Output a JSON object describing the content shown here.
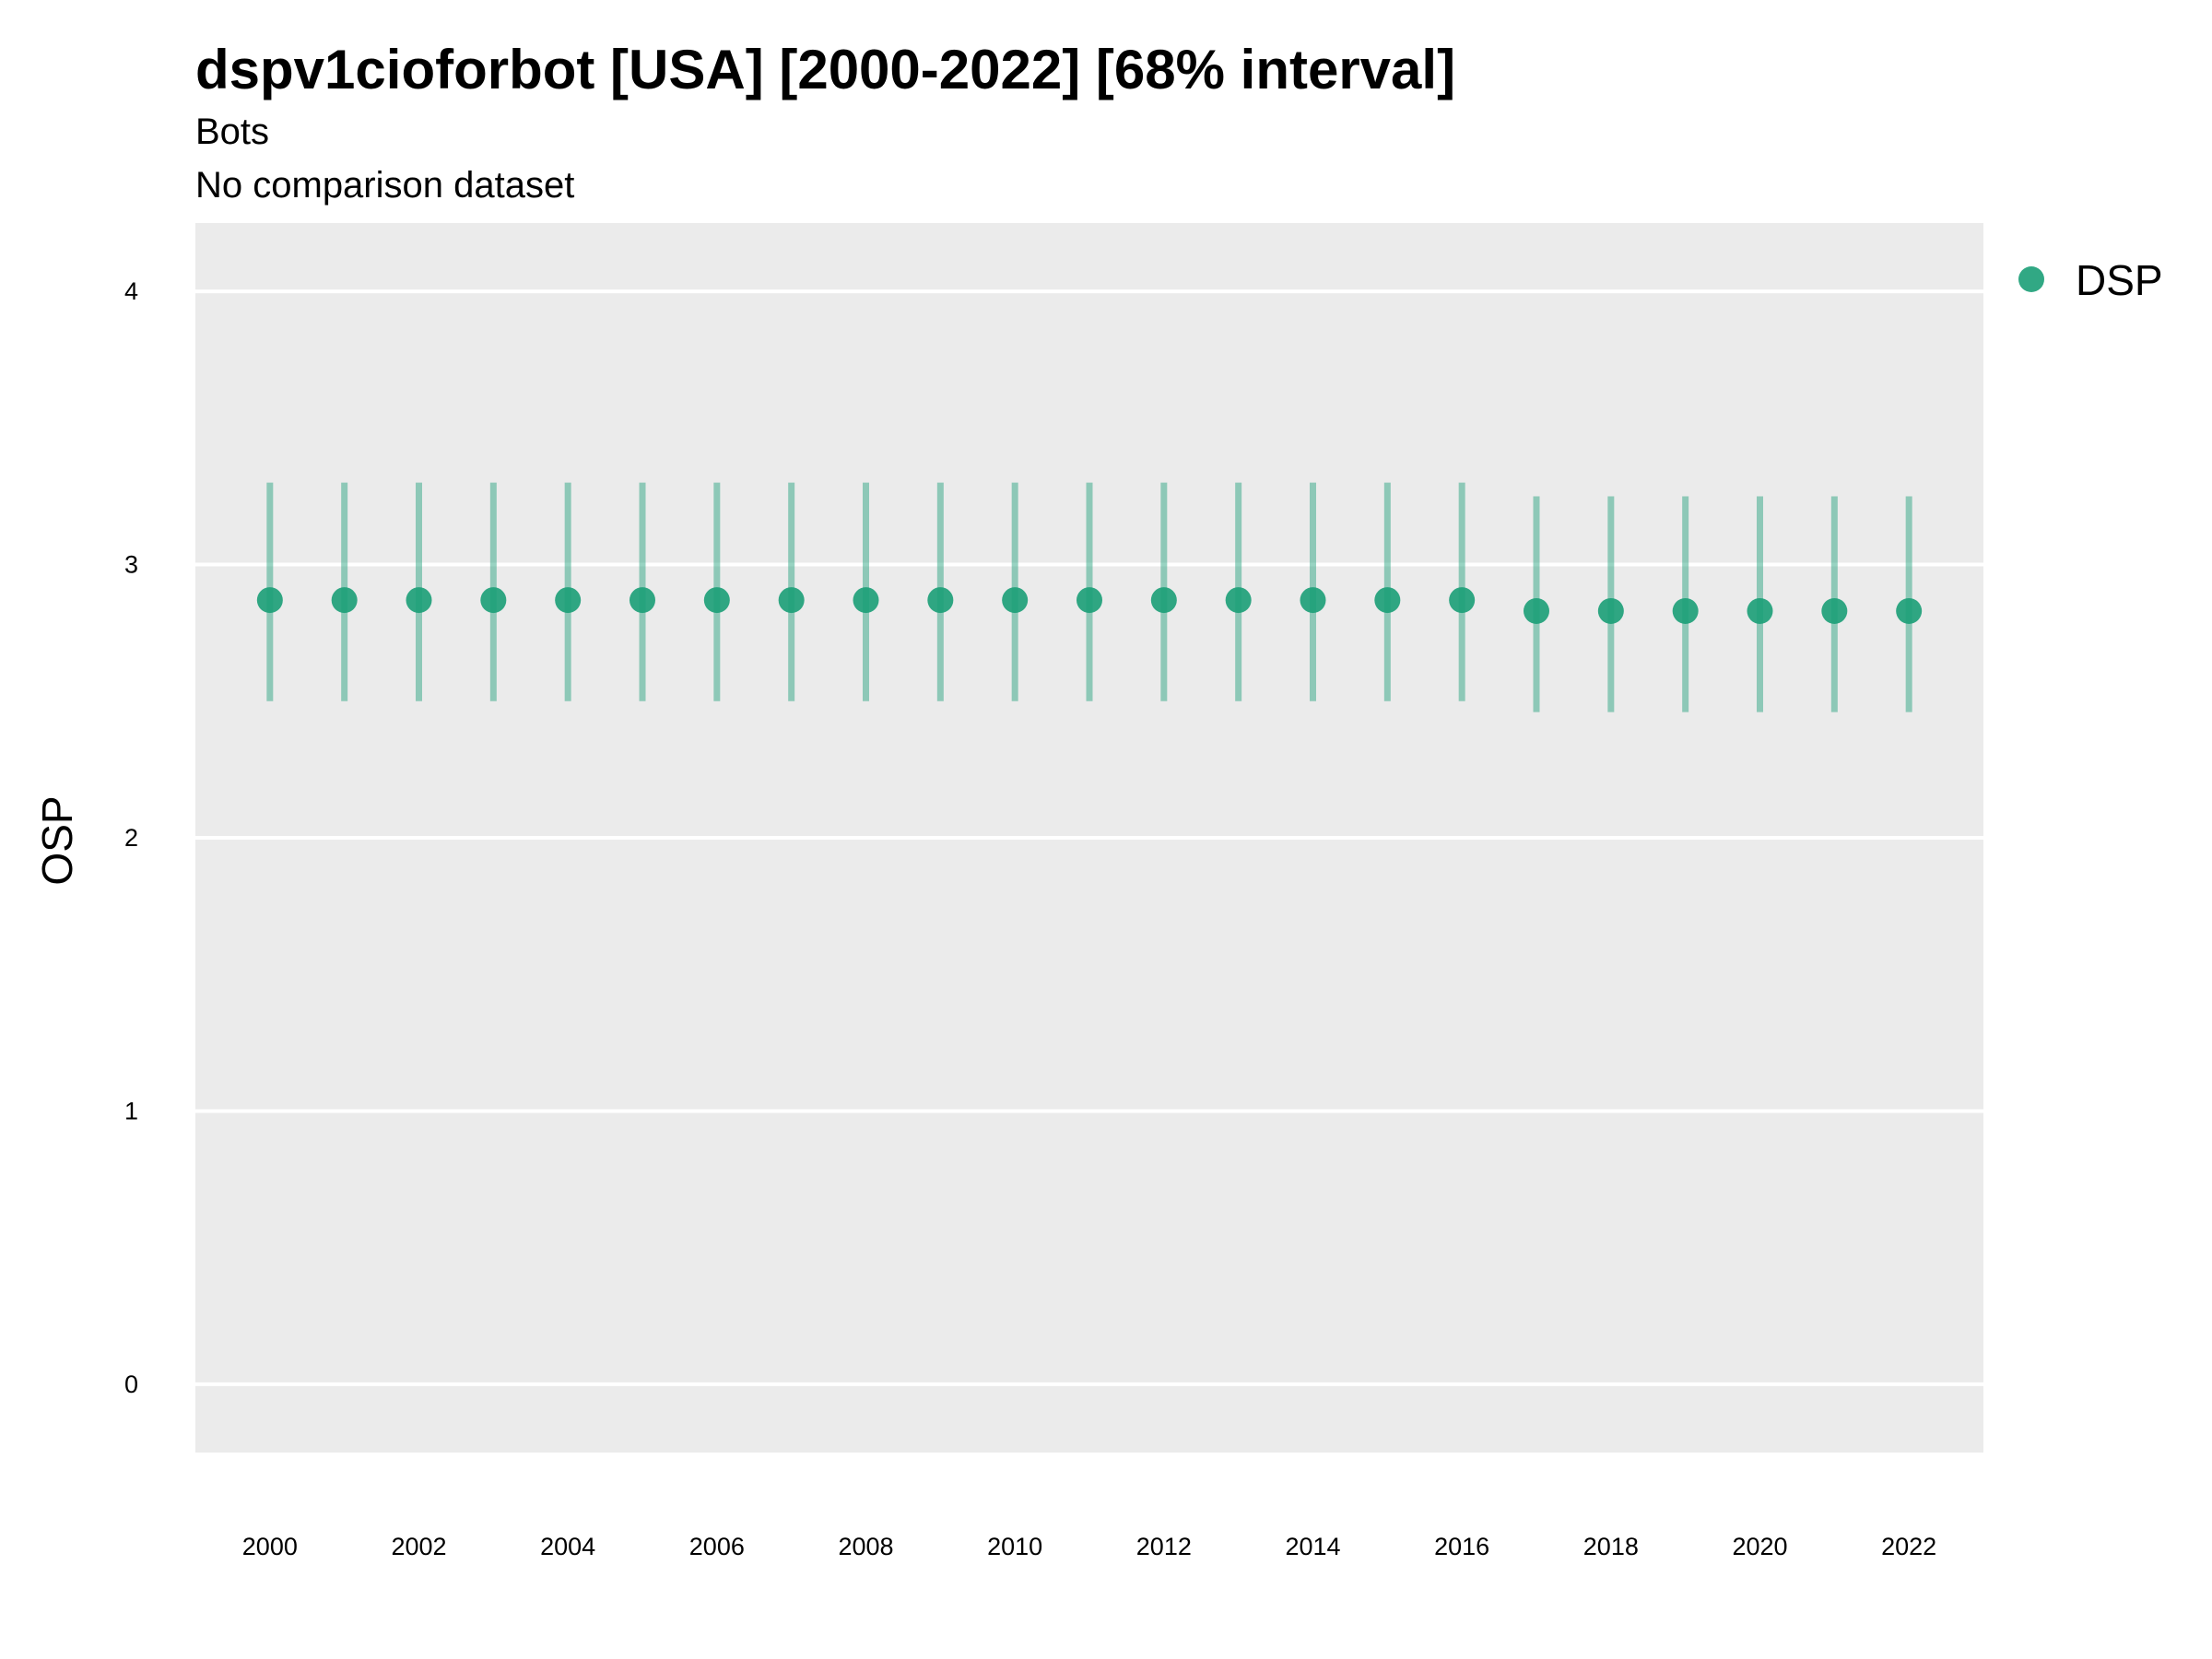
{
  "chart_data": {
    "type": "scatter",
    "title": "dspv1cioforbot [USA] [2000-2022] [68% interval]",
    "subtitle": "Bots",
    "caption": "No comparison dataset",
    "xlabel": "",
    "ylabel": "OSP",
    "ylim": [
      -0.25,
      4.25
    ],
    "xlim": [
      1999,
      2023
    ],
    "y_ticks": [
      "0",
      "1",
      "2",
      "3",
      "4"
    ],
    "x_ticks": [
      "2000",
      "2002",
      "2004",
      "2006",
      "2008",
      "2010",
      "2012",
      "2014",
      "2016",
      "2018",
      "2020",
      "2022"
    ],
    "grid": true,
    "legend_position": "right",
    "series": [
      {
        "name": "DSP",
        "color": "#1b9e77",
        "x": [
          2000,
          2001,
          2002,
          2003,
          2004,
          2005,
          2006,
          2007,
          2008,
          2009,
          2010,
          2011,
          2012,
          2013,
          2014,
          2015,
          2016,
          2017,
          2018,
          2019,
          2020,
          2021,
          2022
        ],
        "y": [
          2.87,
          2.87,
          2.87,
          2.87,
          2.87,
          2.87,
          2.87,
          2.87,
          2.87,
          2.87,
          2.87,
          2.87,
          2.87,
          2.87,
          2.87,
          2.87,
          2.87,
          2.83,
          2.83,
          2.83,
          2.83,
          2.83,
          2.83
        ],
        "lower": [
          2.5,
          2.5,
          2.5,
          2.5,
          2.5,
          2.5,
          2.5,
          2.5,
          2.5,
          2.5,
          2.5,
          2.5,
          2.5,
          2.5,
          2.5,
          2.5,
          2.5,
          2.46,
          2.46,
          2.46,
          2.46,
          2.46,
          2.46
        ],
        "upper": [
          3.3,
          3.3,
          3.3,
          3.3,
          3.3,
          3.3,
          3.3,
          3.3,
          3.3,
          3.3,
          3.3,
          3.3,
          3.3,
          3.3,
          3.3,
          3.3,
          3.3,
          3.25,
          3.25,
          3.25,
          3.25,
          3.25,
          3.25
        ]
      }
    ]
  }
}
